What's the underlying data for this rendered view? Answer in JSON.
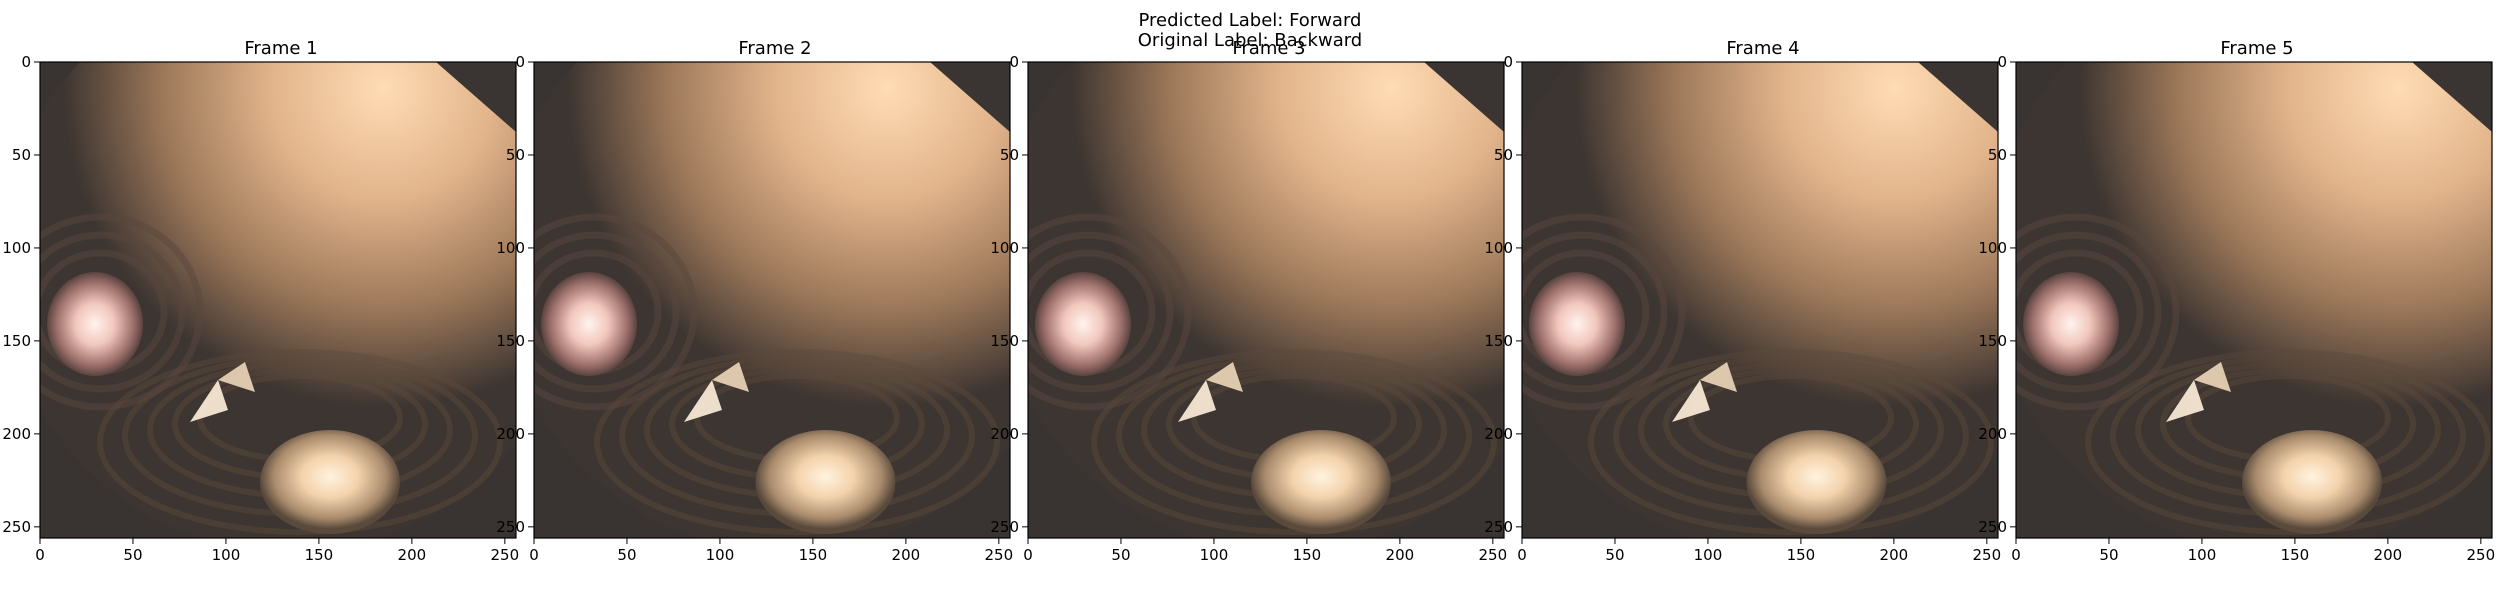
{
  "figure": {
    "predicted_label": "Predicted Label: Forward",
    "original_label": "Original Label: Backward"
  },
  "frames": [
    {
      "title": "Frame 1"
    },
    {
      "title": "Frame 2"
    },
    {
      "title": "Frame 3"
    },
    {
      "title": "Frame 4"
    },
    {
      "title": "Frame 5"
    }
  ],
  "axes": {
    "x_ticks": [
      "0",
      "50",
      "100",
      "150",
      "200",
      "250"
    ],
    "y_ticks": [
      "0",
      "50",
      "100",
      "150",
      "200",
      "250"
    ],
    "xlim": [
      0,
      256
    ],
    "ylim": [
      256,
      0
    ]
  }
}
